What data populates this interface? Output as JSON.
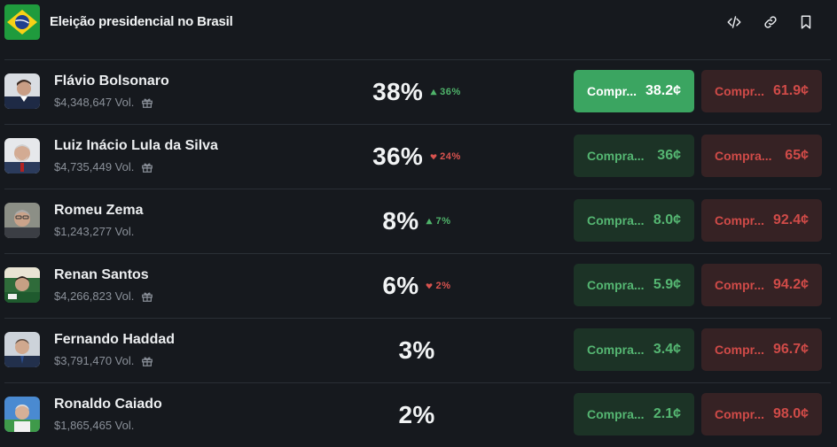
{
  "header": {
    "title": "Eleição presidencial no Brasil",
    "icons": [
      "embed-icon",
      "link-icon",
      "bookmark-icon"
    ]
  },
  "colors": {
    "background": "#16191e",
    "yes_bg": "#1c3326",
    "yes_active_bg": "#3ba561",
    "yes_text": "#55b672",
    "no_bg": "#362224",
    "no_text": "#d04b48",
    "up": "#4fb36a",
    "down": "#d9534f"
  },
  "candidates": [
    {
      "name": "Flávio Bolsonaro",
      "volume": "$4,348,647 Vol.",
      "percent": "38%",
      "change": "36%",
      "direction": "up",
      "yes_label": "Compr...",
      "yes_price": "38.2¢",
      "no_label": "Compr...",
      "no_price": "61.9¢",
      "gift": true
    },
    {
      "name": "Luiz Inácio Lula da Silva",
      "volume": "$4,735,449 Vol.",
      "percent": "36%",
      "change": "24%",
      "direction": "down",
      "yes_label": "Compra...",
      "yes_price": "36¢",
      "no_label": "Compra...",
      "no_price": "65¢",
      "gift": true
    },
    {
      "name": "Romeu Zema",
      "volume": "$1,243,277 Vol.",
      "percent": "8%",
      "change": "7%",
      "direction": "up",
      "yes_label": "Compra...",
      "yes_price": "8.0¢",
      "no_label": "Compr...",
      "no_price": "92.4¢",
      "gift": false
    },
    {
      "name": "Renan Santos",
      "volume": "$4,266,823 Vol.",
      "percent": "6%",
      "change": "2%",
      "direction": "down",
      "yes_label": "Compra...",
      "yes_price": "5.9¢",
      "no_label": "Compr...",
      "no_price": "94.2¢",
      "gift": true
    },
    {
      "name": "Fernando Haddad",
      "volume": "$3,791,470 Vol.",
      "percent": "3%",
      "change": "",
      "direction": "",
      "yes_label": "Compra...",
      "yes_price": "3.4¢",
      "no_label": "Compr...",
      "no_price": "96.7¢",
      "gift": true
    },
    {
      "name": "Ronaldo Caiado",
      "volume": "$1,865,465 Vol.",
      "percent": "2%",
      "change": "",
      "direction": "",
      "yes_label": "Compra...",
      "yes_price": "2.1¢",
      "no_label": "Compr...",
      "no_price": "98.0¢",
      "gift": false
    }
  ]
}
